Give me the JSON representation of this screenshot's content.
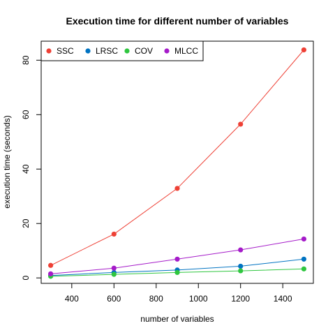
{
  "chart_data": {
    "type": "line",
    "title": "Execution time for different number of variables",
    "xlabel": "number of variables",
    "ylabel": "execution time (seconds)",
    "x": [
      300,
      600,
      900,
      1200,
      1500
    ],
    "xlim": [
      255,
      1545
    ],
    "ylim": [
      -2,
      87
    ],
    "xticks": [
      400,
      600,
      800,
      1000,
      1200,
      1400
    ],
    "yticks": [
      0,
      20,
      40,
      60,
      80
    ],
    "grid": false,
    "legend_position": "top-left",
    "series": [
      {
        "name": "SSC",
        "color": "#ee4035",
        "values": [
          4.6,
          16.1,
          32.9,
          56.5,
          83.8
        ]
      },
      {
        "name": "LRSC",
        "color": "#0073c2",
        "values": [
          0.9,
          2.0,
          2.9,
          4.3,
          6.9
        ]
      },
      {
        "name": "COV",
        "color": "#2fc63f",
        "values": [
          0.6,
          1.3,
          2.0,
          2.6,
          3.3
        ]
      },
      {
        "name": "MLCC",
        "color": "#a51bc9",
        "values": [
          1.5,
          3.6,
          6.9,
          10.3,
          14.3
        ]
      }
    ]
  }
}
